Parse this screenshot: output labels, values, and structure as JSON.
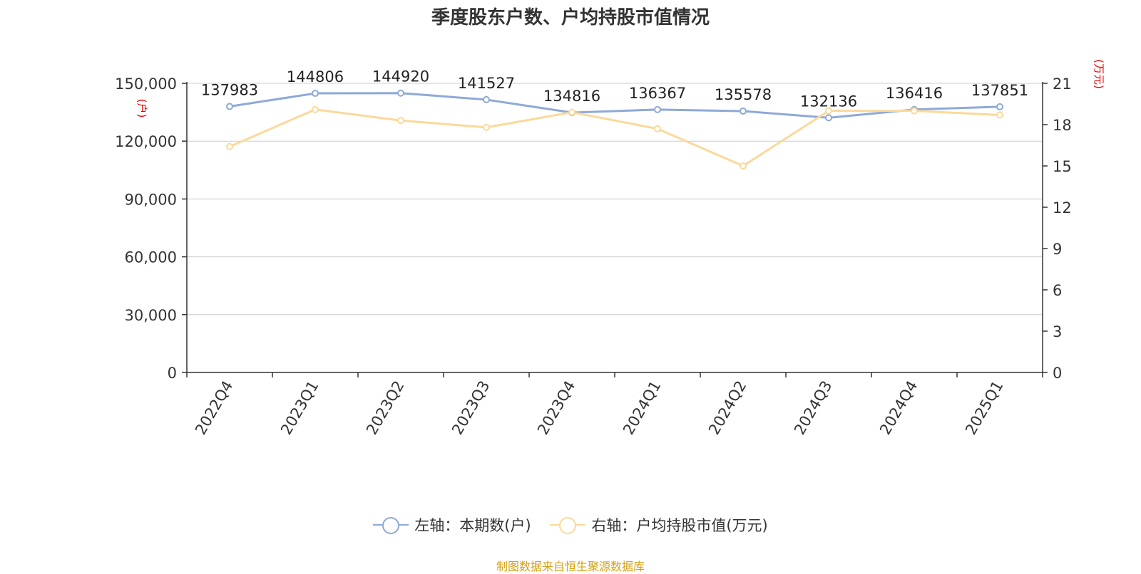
{
  "title": "季度股东户数、户均持股市值情况",
  "source": "制图数据来自恒生聚源数据库",
  "chart_data": {
    "type": "line",
    "title": "季度股东户数、户均持股市值情况",
    "categories": [
      "2022Q4",
      "2023Q1",
      "2023Q2",
      "2023Q3",
      "2023Q4",
      "2024Q1",
      "2024Q2",
      "2024Q3",
      "2024Q4",
      "2025Q1"
    ],
    "left_axis": {
      "unit": "(户)",
      "ylim": [
        0,
        150000
      ],
      "ticks": [
        0,
        30000,
        60000,
        90000,
        120000,
        150000
      ],
      "tick_labels": [
        "0",
        "30,000",
        "60,000",
        "90,000",
        "120,000",
        "150,000"
      ]
    },
    "right_axis": {
      "unit": "(万元)",
      "ylim": [
        0,
        21
      ],
      "ticks": [
        0,
        3,
        6,
        9,
        12,
        15,
        18,
        21
      ],
      "tick_labels": [
        "0",
        "3",
        "6",
        "9",
        "12",
        "15",
        "18",
        "21"
      ]
    },
    "grid": true,
    "legend_position": "bottom",
    "series": [
      {
        "name": "左轴：本期数(户)",
        "axis": "left",
        "color": "#8ea9d8",
        "values": [
          137983,
          144806,
          144920,
          141527,
          134816,
          136367,
          135578,
          132136,
          136416,
          137851
        ],
        "data_labels": [
          "137983",
          "144806",
          "144920",
          "141527",
          "134816",
          "136367",
          "135578",
          "132136",
          "136416",
          "137851"
        ]
      },
      {
        "name": "右轴：户均持股市值(万元)",
        "axis": "right",
        "color": "#fbd99a",
        "values": [
          16.4,
          19.1,
          18.3,
          17.8,
          18.9,
          17.7,
          15.0,
          19.0,
          19.0,
          18.7
        ]
      }
    ]
  }
}
